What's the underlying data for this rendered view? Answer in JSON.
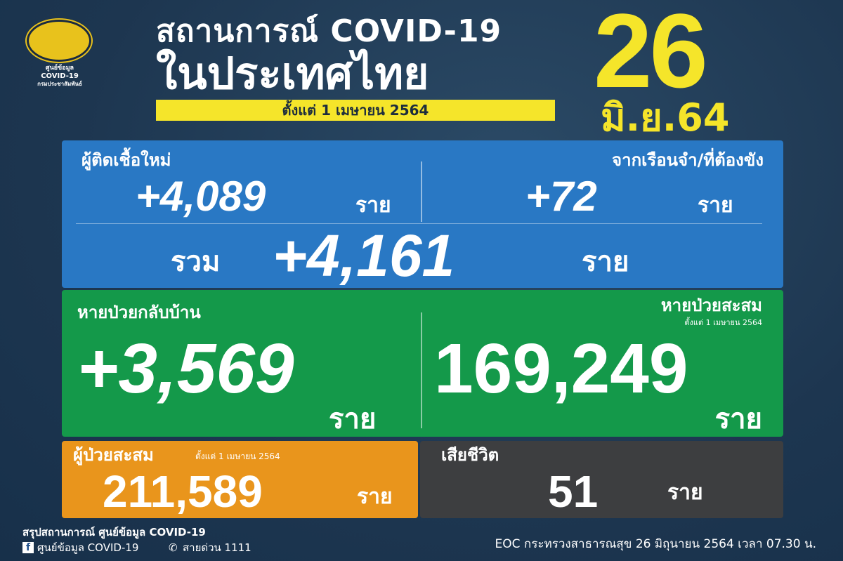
{
  "logo": {
    "line1": "ศูนย์ข้อมูล",
    "line2": "COVID-19",
    "line3": "กรมประชาสัมพันธ์"
  },
  "header": {
    "title1": "สถานการณ์ COVID-19",
    "title2": "ในประเทศไทย",
    "since": "ตั้งแต่ 1 เมษายน 2564",
    "day": "26",
    "month": "มิ.ย.64"
  },
  "new_cases": {
    "label": "ผู้ติดเชื้อใหม่",
    "value": "+4,089",
    "unit": "ราย"
  },
  "prison": {
    "label": "จากเรือนจำ/ที่ต้องขัง",
    "value": "+72",
    "unit": "ราย"
  },
  "total": {
    "label": "รวม",
    "value": "+4,161",
    "unit": "ราย"
  },
  "recovered": {
    "label": "หายป่วยกลับบ้าน",
    "value": "+3,569",
    "unit": "ราย"
  },
  "recovered_cum": {
    "label": "หายป่วยสะสม",
    "sub": "ตั้งแต่ 1 เมษายน 2564",
    "value": "169,249",
    "unit": "ราย"
  },
  "cumulative": {
    "label": "ผู้ป่วยสะสม",
    "sub": "ตั้งแต่ 1 เมษายน 2564",
    "value": "211,589",
    "unit": "ราย"
  },
  "deaths": {
    "label": "เสียชีวิต",
    "value": "51",
    "unit": "ราย"
  },
  "footer": {
    "line1": "สรุปสถานการณ์ ศูนย์ข้อมูล COVID-19",
    "facebook": "ศูนย์ข้อมูล COVID-19",
    "hotline": "สายด่วน 1111",
    "source": "EOC กระทรวงสาธารณสุข 26 มิถุนายน 2564 เวลา 07.30 น."
  },
  "colors": {
    "blue": "#2978c4",
    "green": "#14994a",
    "orange": "#e9951c",
    "gray": "#3d3e40",
    "yellow": "#f5e52a"
  }
}
